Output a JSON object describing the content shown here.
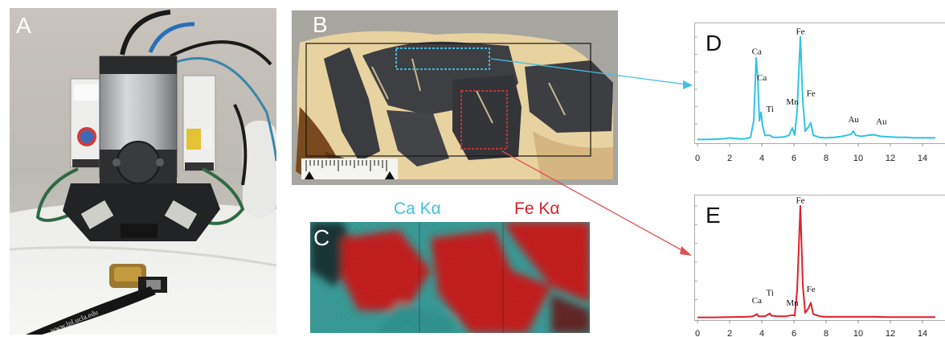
{
  "panels": {
    "a": {
      "letter": "A"
    },
    "b": {
      "letter": "B"
    },
    "c": {
      "letter": "C",
      "legend": {
        "ca": "Ca Kα",
        "fe": "Fe Kα"
      }
    },
    "d": {
      "letter": "D"
    },
    "e": {
      "letter": "E"
    }
  },
  "photo_text": {
    "lower_label": "www.lpl.ucla.edu"
  },
  "colors": {
    "ca": "#2ec4e6",
    "fe": "#e0202a",
    "ca_map": "#3fb3b0",
    "fe_map": "#d81e22"
  },
  "chart_data": [
    {
      "type": "line",
      "panel": "D",
      "xticks": [
        0,
        2,
        4,
        6,
        8,
        10,
        12,
        14
      ],
      "xlim": [
        0,
        14.8
      ],
      "ylim": [
        0,
        100
      ],
      "series": [
        {
          "color": "#2ec4e6",
          "points": [
            [
              0,
              2
            ],
            [
              0.5,
              2
            ],
            [
              1,
              2.2
            ],
            [
              1.5,
              2.5
            ],
            [
              1.8,
              3
            ],
            [
              2,
              3.5
            ],
            [
              2.3,
              3
            ],
            [
              2.7,
              2.5
            ],
            [
              3.0,
              2.8
            ],
            [
              3.3,
              4
            ],
            [
              3.5,
              20
            ],
            [
              3.65,
              80
            ],
            [
              3.75,
              60
            ],
            [
              3.85,
              20
            ],
            [
              3.95,
              28
            ],
            [
              4.05,
              15
            ],
            [
              4.2,
              6
            ],
            [
              4.5,
              6
            ],
            [
              4.7,
              4
            ],
            [
              5.0,
              4
            ],
            [
              5.4,
              4.5
            ],
            [
              5.7,
              6
            ],
            [
              5.9,
              13
            ],
            [
              6.05,
              6
            ],
            [
              6.2,
              30
            ],
            [
              6.4,
              100
            ],
            [
              6.55,
              40
            ],
            [
              6.7,
              10
            ],
            [
              6.9,
              14
            ],
            [
              7.05,
              18
            ],
            [
              7.2,
              6
            ],
            [
              7.6,
              4
            ],
            [
              8.0,
              3.5
            ],
            [
              8.5,
              4
            ],
            [
              9.0,
              5
            ],
            [
              9.3,
              6
            ],
            [
              9.55,
              7
            ],
            [
              9.7,
              10
            ],
            [
              9.85,
              6
            ],
            [
              10.2,
              5
            ],
            [
              10.6,
              6
            ],
            [
              11.0,
              6.5
            ],
            [
              11.4,
              5
            ],
            [
              12.0,
              4.5
            ],
            [
              12.5,
              4
            ],
            [
              13.0,
              4
            ],
            [
              13.5,
              3.5
            ],
            [
              14.0,
              3.5
            ],
            [
              14.8,
              3.5
            ]
          ]
        }
      ],
      "peak_labels": [
        {
          "text": "Ca",
          "x": 3.69,
          "y": 82
        },
        {
          "text": "Ca",
          "x": 4.01,
          "y": 57
        },
        {
          "text": "Ti",
          "x": 4.51,
          "y": 27
        },
        {
          "text": "Mn",
          "x": 5.9,
          "y": 34
        },
        {
          "text": "Fe",
          "x": 6.4,
          "y": 101
        },
        {
          "text": "Fe",
          "x": 7.06,
          "y": 42
        },
        {
          "text": "Au",
          "x": 9.71,
          "y": 17
        },
        {
          "text": "Au",
          "x": 11.44,
          "y": 15
        }
      ]
    },
    {
      "type": "line",
      "panel": "E",
      "xticks": [
        0,
        2,
        4,
        6,
        8,
        10,
        12,
        14
      ],
      "xlim": [
        0,
        14.8
      ],
      "ylim": [
        0,
        100
      ],
      "series": [
        {
          "color": "#e0202a",
          "points": [
            [
              0,
              1
            ],
            [
              1,
              1
            ],
            [
              2,
              1.2
            ],
            [
              3,
              1.5
            ],
            [
              3.4,
              1.8
            ],
            [
              3.6,
              3
            ],
            [
              3.7,
              4
            ],
            [
              3.8,
              2
            ],
            [
              4.2,
              2
            ],
            [
              4.5,
              4.5
            ],
            [
              4.6,
              2.5
            ],
            [
              5.0,
              2
            ],
            [
              5.5,
              2
            ],
            [
              5.9,
              3
            ],
            [
              6.05,
              2.5
            ],
            [
              6.2,
              25
            ],
            [
              6.4,
              100
            ],
            [
              6.55,
              30
            ],
            [
              6.7,
              5
            ],
            [
              6.9,
              9
            ],
            [
              7.05,
              14
            ],
            [
              7.2,
              4
            ],
            [
              7.6,
              2
            ],
            [
              8,
              1.5
            ],
            [
              9,
              1.5
            ],
            [
              10,
              1.5
            ],
            [
              11,
              1.5
            ],
            [
              12,
              1.3
            ],
            [
              13,
              1.2
            ],
            [
              14,
              1.2
            ],
            [
              14.8,
              1.2
            ]
          ]
        }
      ],
      "peak_labels": [
        {
          "text": "Ca",
          "x": 3.69,
          "y": 12
        },
        {
          "text": "Ti",
          "x": 4.51,
          "y": 19
        },
        {
          "text": "Mn",
          "x": 5.9,
          "y": 10
        },
        {
          "text": "Fe",
          "x": 6.4,
          "y": 101
        },
        {
          "text": "Fe",
          "x": 7.06,
          "y": 22
        }
      ]
    }
  ]
}
